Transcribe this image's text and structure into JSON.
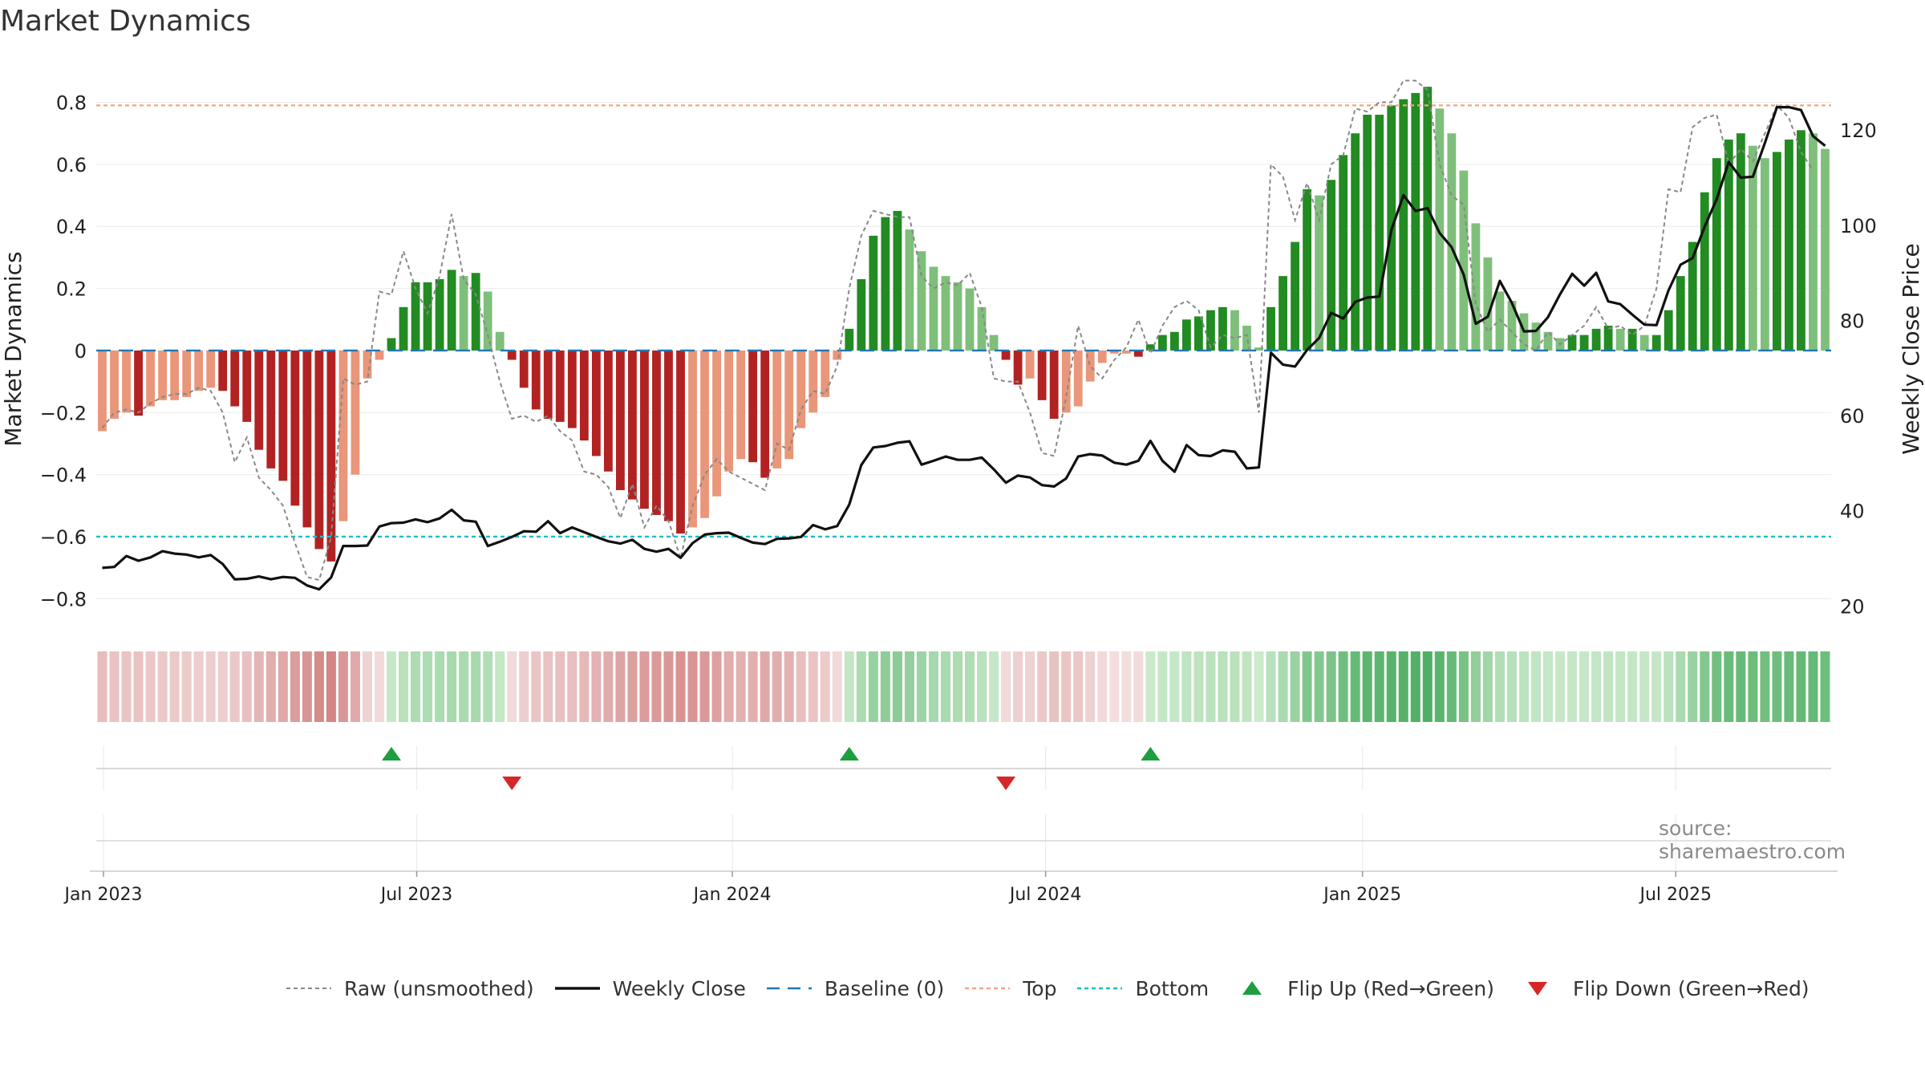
{
  "title": "Market Dynamics",
  "source": "source: sharemaestro.com",
  "colors": {
    "strong_red": "#b22222",
    "light_red": "#e9967a",
    "strong_green": "#228b22",
    "light_green": "#7fbf7b",
    "baseline": "#1f77b4",
    "top": "#f4a582",
    "bottom": "#17becf",
    "raw": "#888888",
    "close": "#111111",
    "flip_up": "#1e9e3e",
    "flip_down": "#d62728"
  },
  "legend": [
    {
      "key": "raw",
      "label": "Raw (unsmoothed)"
    },
    {
      "key": "close",
      "label": "Weekly Close"
    },
    {
      "key": "baseline",
      "label": "Baseline (0)"
    },
    {
      "key": "top",
      "label": "Top"
    },
    {
      "key": "bottom",
      "label": "Bottom"
    },
    {
      "key": "flip_up",
      "label": "Flip Up (Red→Green)"
    },
    {
      "key": "flip_down",
      "label": "Flip Down (Green→Red)"
    }
  ],
  "chart_data": {
    "type": "bar",
    "ylabel": "Market Dynamics",
    "y2label": "Weekly Close Price",
    "ylim": [
      -0.9,
      0.91
    ],
    "y2lim": [
      15,
      133
    ],
    "yticks": [
      -0.8,
      -0.6,
      -0.4,
      -0.2,
      0,
      0.2,
      0.4,
      0.6,
      0.8
    ],
    "ytick_labels": [
      "−0.8",
      "−0.6",
      "−0.4",
      "−0.2",
      "0",
      "0.2",
      "0.4",
      "0.6",
      "0.8"
    ],
    "y2ticks": [
      20,
      40,
      60,
      80,
      100,
      120
    ],
    "y2tick_labels": [
      "20",
      "40",
      "60",
      "80",
      "100",
      "120"
    ],
    "xtick_labels": [
      "Jan 2023",
      "Jul 2023",
      "Jan 2024",
      "Jul 2024",
      "Jan 2025",
      "Jul 2025"
    ],
    "xtick_weeks": [
      0.6,
      26.6,
      52.8,
      78.8,
      105.1,
      131.1
    ],
    "week_start": "2022-12-25",
    "grid": true,
    "legend_position": "bottom",
    "top_level": 0.79,
    "bottom_level": -0.6,
    "baseline_level": 0,
    "dynamics": [
      -0.26,
      -0.22,
      -0.2,
      -0.21,
      -0.18,
      -0.16,
      -0.16,
      -0.15,
      -0.13,
      -0.12,
      -0.13,
      -0.18,
      -0.23,
      -0.32,
      -0.38,
      -0.42,
      -0.5,
      -0.57,
      -0.64,
      -0.68,
      -0.55,
      -0.4,
      -0.09,
      -0.03,
      0.04,
      0.14,
      0.22,
      0.22,
      0.23,
      0.26,
      0.24,
      0.25,
      0.19,
      0.06,
      -0.03,
      -0.12,
      -0.19,
      -0.22,
      -0.23,
      -0.25,
      -0.29,
      -0.34,
      -0.39,
      -0.45,
      -0.48,
      -0.51,
      -0.53,
      -0.55,
      -0.59,
      -0.57,
      -0.54,
      -0.47,
      -0.39,
      -0.35,
      -0.36,
      -0.41,
      -0.38,
      -0.35,
      -0.25,
      -0.2,
      -0.15,
      -0.03,
      0.07,
      0.23,
      0.37,
      0.43,
      0.45,
      0.39,
      0.32,
      0.27,
      0.24,
      0.22,
      0.2,
      0.14,
      0.05,
      -0.03,
      -0.11,
      -0.09,
      -0.16,
      -0.22,
      -0.2,
      -0.18,
      -0.1,
      -0.04,
      -0.01,
      -0.01,
      -0.02,
      0.02,
      0.05,
      0.06,
      0.1,
      0.11,
      0.13,
      0.14,
      0.13,
      0.08,
      0.01,
      0.14,
      0.24,
      0.35,
      0.52,
      0.5,
      0.55,
      0.63,
      0.7,
      0.76,
      0.76,
      0.79,
      0.81,
      0.83,
      0.85,
      0.78,
      0.7,
      0.58,
      0.41,
      0.3,
      0.19,
      0.16,
      0.12,
      0.09,
      0.06,
      0.04,
      0.05,
      0.05,
      0.07,
      0.08,
      0.07,
      0.07,
      0.05,
      0.05,
      0.13,
      0.24,
      0.35,
      0.51,
      0.62,
      0.68,
      0.7,
      0.66,
      0.62,
      0.64,
      0.68,
      0.71,
      0.7,
      0.65
    ],
    "raw": [
      -0.25,
      -0.2,
      -0.19,
      -0.2,
      -0.17,
      -0.15,
      -0.14,
      -0.14,
      -0.12,
      -0.13,
      -0.2,
      -0.36,
      -0.28,
      -0.41,
      -0.45,
      -0.5,
      -0.62,
      -0.73,
      -0.74,
      -0.6,
      -0.09,
      -0.11,
      -0.1,
      0.19,
      0.18,
      0.32,
      0.2,
      0.12,
      0.24,
      0.44,
      0.23,
      0.18,
      0.05,
      -0.1,
      -0.22,
      -0.21,
      -0.23,
      -0.21,
      -0.26,
      -0.29,
      -0.39,
      -0.4,
      -0.44,
      -0.54,
      -0.43,
      -0.57,
      -0.5,
      -0.55,
      -0.67,
      -0.5,
      -0.4,
      -0.35,
      -0.39,
      -0.41,
      -0.43,
      -0.45,
      -0.3,
      -0.32,
      -0.19,
      -0.13,
      -0.14,
      -0.05,
      0.2,
      0.37,
      0.45,
      0.44,
      0.43,
      0.43,
      0.24,
      0.2,
      0.22,
      0.21,
      0.25,
      0.14,
      -0.09,
      -0.1,
      -0.1,
      -0.2,
      -0.33,
      -0.34,
      -0.15,
      0.08,
      -0.05,
      -0.09,
      -0.03,
      0.01,
      0.1,
      -0.01,
      0.08,
      0.14,
      0.16,
      0.13,
      0.01,
      0.05,
      0.04,
      0.05,
      -0.2,
      0.6,
      0.56,
      0.42,
      0.54,
      0.42,
      0.6,
      0.63,
      0.78,
      0.77,
      0.8,
      0.8,
      0.87,
      0.87,
      0.84,
      0.6,
      0.5,
      0.47,
      0.15,
      0.06,
      0.1,
      0.06,
      0.02,
      0.0,
      0.06,
      0.02,
      0.05,
      0.08,
      0.14,
      0.07,
      0.08,
      0.05,
      0.08,
      0.2,
      0.52,
      0.51,
      0.72,
      0.75,
      0.76,
      0.6,
      0.65,
      0.61,
      0.7,
      0.79,
      0.75,
      0.64,
      0.58
    ],
    "close": [
      28,
      28.2,
      30.5,
      29.5,
      30.2,
      31.5,
      31,
      30.8,
      30.2,
      30.7,
      28.8,
      25.6,
      25.7,
      26.2,
      25.6,
      26.1,
      25.9,
      24.3,
      23.5,
      26,
      32.6,
      32.6,
      32.7,
      36.7,
      37.4,
      37.5,
      38.2,
      37.6,
      38.4,
      40.2,
      38,
      37.7,
      32.6,
      33.5,
      34.5,
      35.7,
      35.6,
      37.8,
      35.3,
      36.5,
      35.5,
      34.5,
      33.6,
      33.1,
      33.9,
      32,
      31.4,
      32,
      30.1,
      33.2,
      35,
      35.3,
      35.4,
      34.3,
      33.3,
      33,
      34.1,
      34.2,
      34.5,
      37,
      36.1,
      36.8,
      41.3,
      49.6,
      53.3,
      53.6,
      54.3,
      54.6,
      49.7,
      50.5,
      51.4,
      50.7,
      50.7,
      51.2,
      48.7,
      45.9,
      47.4,
      47,
      45.4,
      45.1,
      46.8,
      51.4,
      51.9,
      51.6,
      50.1,
      49.7,
      50.5,
      54.7,
      50.5,
      48.2,
      53.8,
      51.7,
      51.5,
      52.7,
      52.4,
      48.9,
      49.1,
      73.2,
      70.7,
      70.3,
      73.8,
      76.3,
      81.6,
      80.4,
      83.9,
      84.8,
      85,
      99,
      106.3,
      103,
      103.6,
      98.4,
      95.4,
      89.6,
      79.3,
      80.8,
      88.3,
      83.7,
      77.7,
      77.8,
      80.7,
      85.5,
      89.8,
      87.3,
      90,
      84,
      83.4,
      81.2,
      79.1,
      79,
      86.3,
      91.7,
      93.1,
      99.7,
      105.5,
      113.3,
      110,
      110.2,
      117.3,
      124.8,
      124.8,
      124.2,
      118.7,
      116.7
    ]
  }
}
